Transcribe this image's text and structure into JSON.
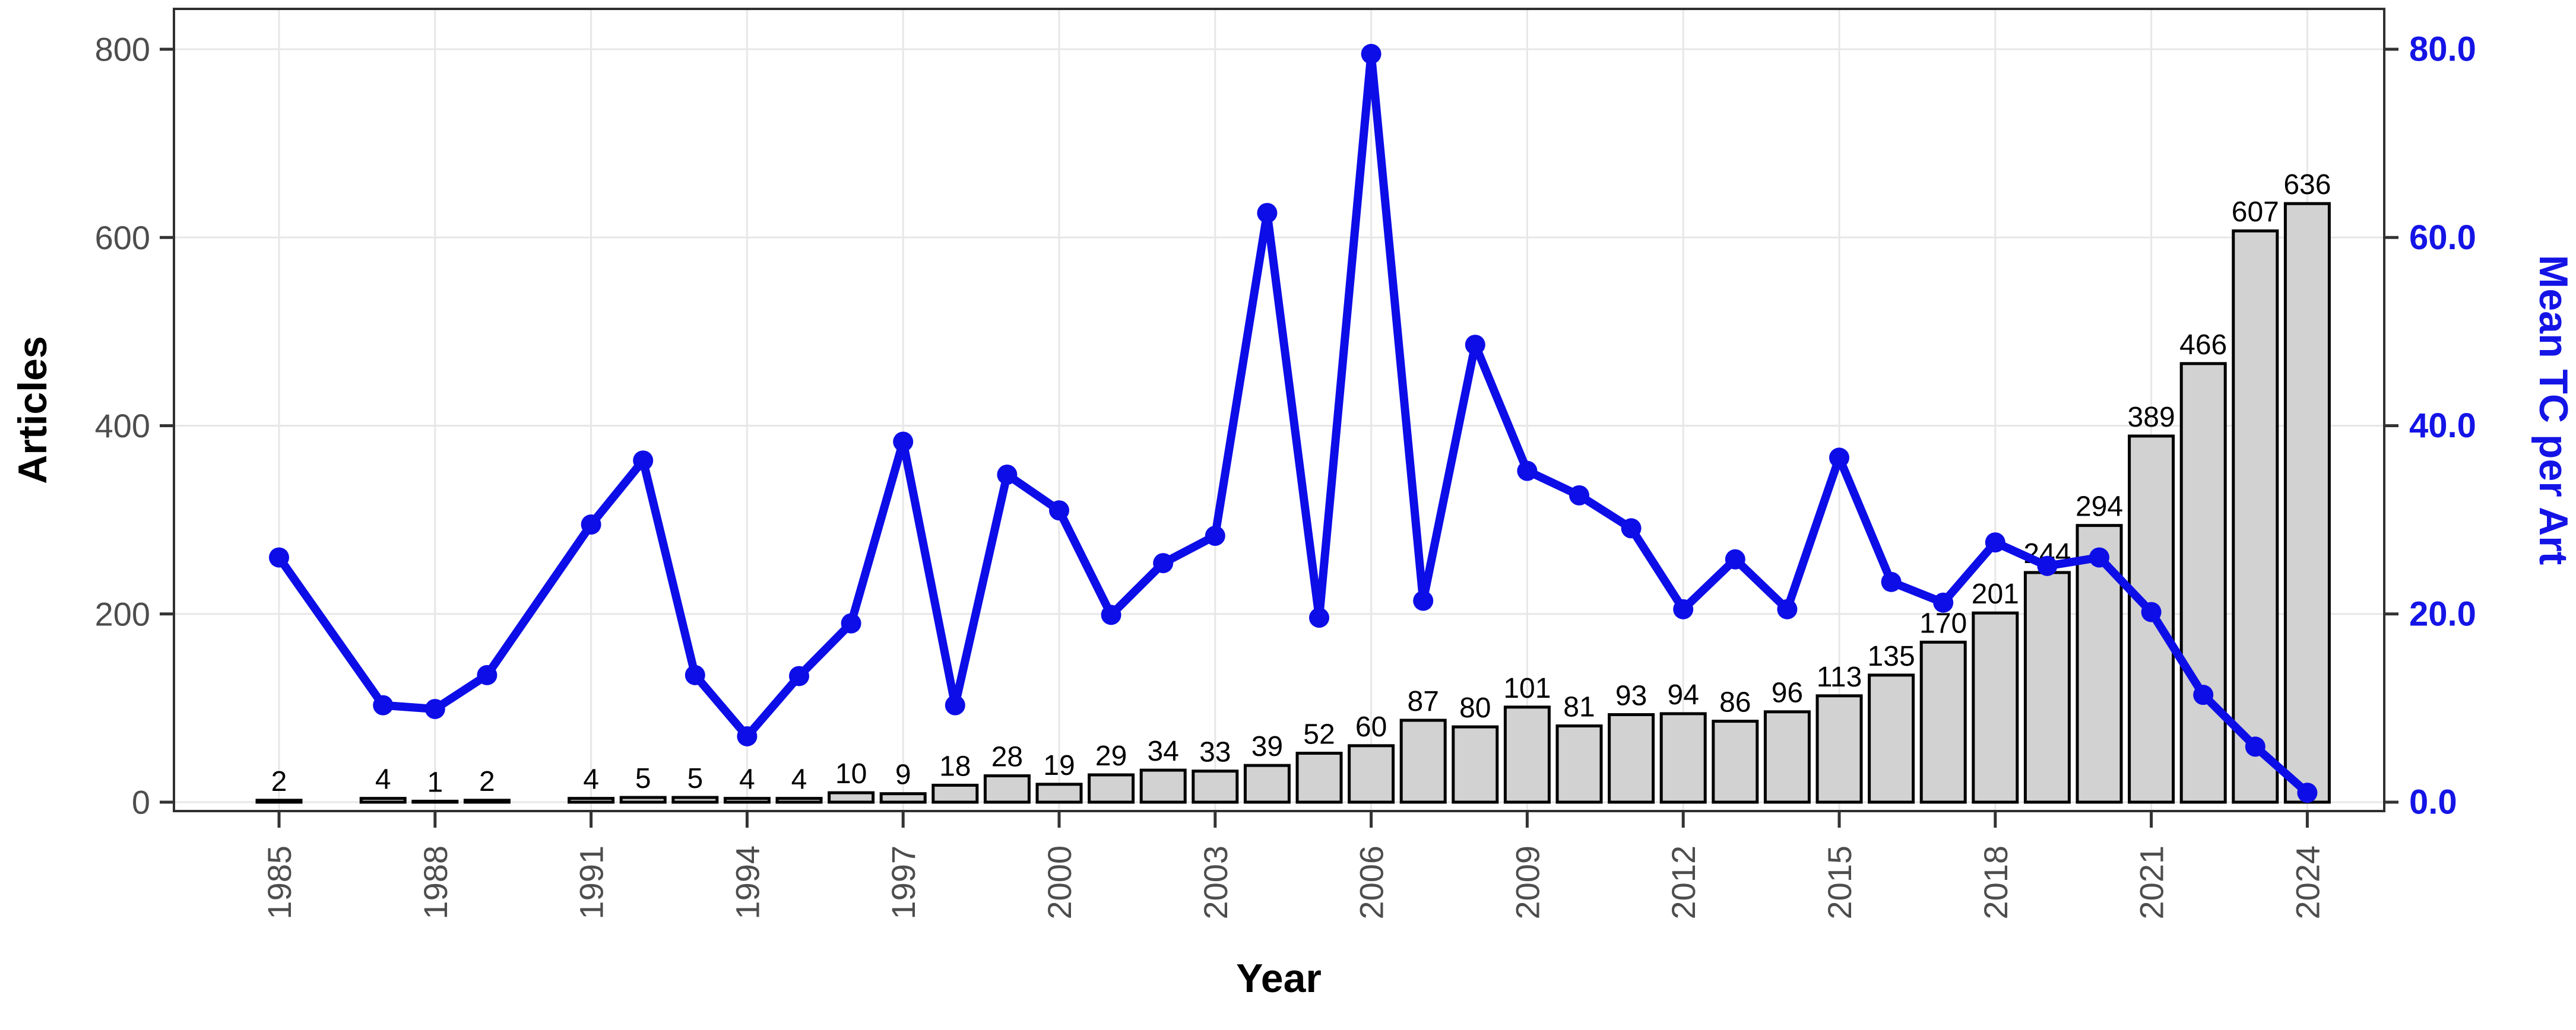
{
  "chart_data": {
    "type": "bar",
    "subtype": "bar+line dual-axis combo",
    "title": "",
    "xlabel": "Year",
    "ylabel_left": "Articles",
    "ylabel_right": "Mean TC per Art",
    "legend": "none",
    "grid": "major gridlines on, white panel, dark panel border",
    "years": [
      1985,
      1986,
      1987,
      1988,
      1989,
      1990,
      1991,
      1992,
      1993,
      1994,
      1995,
      1996,
      1997,
      1998,
      1999,
      2000,
      2001,
      2002,
      2003,
      2004,
      2005,
      2006,
      2007,
      2008,
      2009,
      2010,
      2011,
      2012,
      2013,
      2014,
      2015,
      2016,
      2017,
      2018,
      2019,
      2020,
      2021,
      2022,
      2023,
      2024
    ],
    "series": [
      {
        "name": "Articles",
        "type": "bar",
        "axis": "left",
        "values": [
          2,
          null,
          4,
          1,
          2,
          null,
          4,
          5,
          5,
          4,
          4,
          10,
          9,
          18,
          28,
          19,
          29,
          34,
          33,
          39,
          52,
          60,
          87,
          80,
          101,
          81,
          93,
          94,
          86,
          96,
          113,
          135,
          170,
          201,
          244,
          294,
          389,
          466,
          607,
          636
        ]
      },
      {
        "name": "Mean TC per Art",
        "type": "line",
        "axis": "right",
        "values": [
          26.0,
          null,
          10.3,
          9.9,
          13.5,
          null,
          29.5,
          36.3,
          13.5,
          7.0,
          13.4,
          19.0,
          38.3,
          10.3,
          34.8,
          31.0,
          19.9,
          25.4,
          28.3,
          62.6,
          19.6,
          79.5,
          21.4,
          48.6,
          35.2,
          32.6,
          29.1,
          20.5,
          25.8,
          20.5,
          36.6,
          23.4,
          21.2,
          27.6,
          25.1,
          26.0,
          20.2,
          11.4,
          5.9,
          1.0
        ]
      }
    ],
    "ylim_left": [
      0,
      800
    ],
    "ylim_right": [
      0.0,
      80.0
    ],
    "yticks_left": [
      {
        "value": 0,
        "label": "0"
      },
      {
        "value": 200,
        "label": "200"
      },
      {
        "value": 400,
        "label": "400"
      },
      {
        "value": 600,
        "label": "600"
      },
      {
        "value": 800,
        "label": "800"
      }
    ],
    "yticks_right": [
      {
        "value": 0,
        "label": "0.0"
      },
      {
        "value": 20,
        "label": "20.0"
      },
      {
        "value": 40,
        "label": "40.0"
      },
      {
        "value": 60,
        "label": "60.0"
      },
      {
        "value": 80,
        "label": "80.0"
      }
    ],
    "xticks": [
      1985,
      1988,
      1991,
      1994,
      1997,
      2000,
      2003,
      2006,
      2009,
      2012,
      2015,
      2018,
      2021,
      2024
    ],
    "colors": {
      "bar_fill": "#D2D2D2",
      "bar_border": "#000000",
      "bar_label": "#000000",
      "line": "#0D0DE8",
      "point": "#0D0DE8",
      "left_tick_label": "#4D4D4D",
      "x_tick_label": "#4D4D4D",
      "right_tick_label": "#1414E6",
      "left_axis_title": "#000000",
      "x_axis_title": "#000000",
      "right_axis_title": "#1414E6",
      "gridline": "#E7E7E7",
      "panel_border": "#2F2F2F",
      "tick_mark": "#333333",
      "background": "#FFFFFF"
    }
  }
}
